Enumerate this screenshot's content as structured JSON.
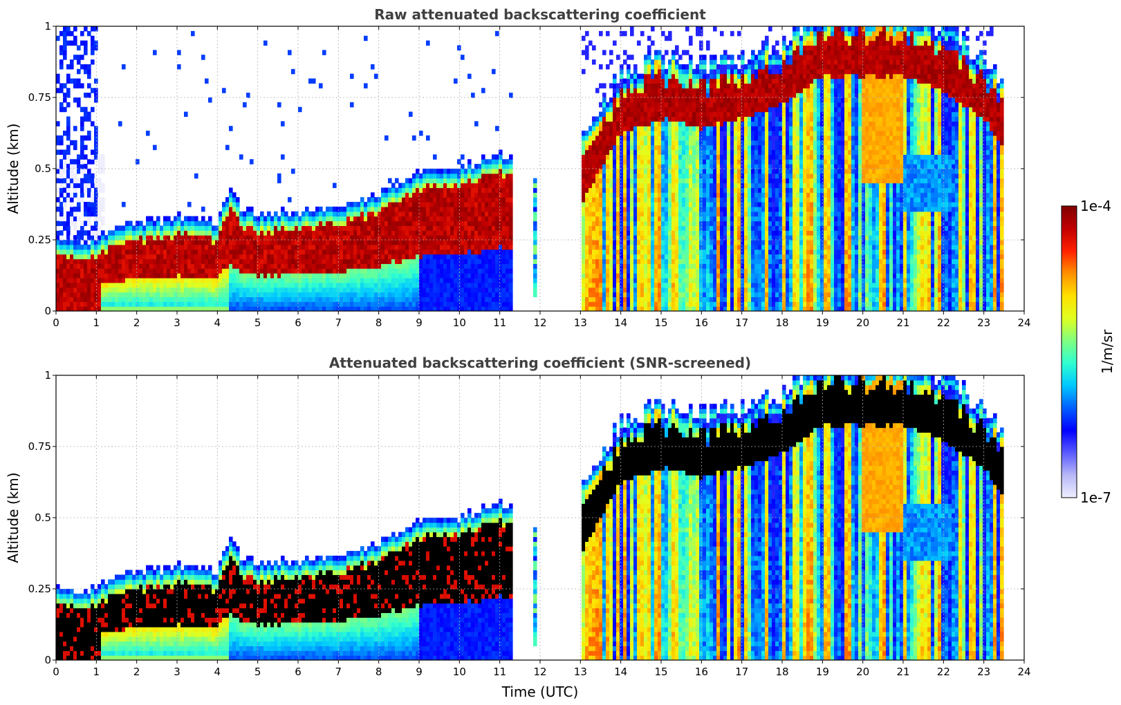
{
  "chart_data": [
    {
      "type": "heatmap",
      "title": "Raw attenuated backscattering coefficient",
      "xlabel": "",
      "ylabel": "Altitude (km)",
      "xlim": [
        0,
        24
      ],
      "ylim": [
        0,
        1
      ],
      "xticks": [
        "0",
        "1",
        "2",
        "3",
        "4",
        "5",
        "6",
        "7",
        "8",
        "9",
        "10",
        "11",
        "12",
        "13",
        "14",
        "15",
        "16",
        "17",
        "18",
        "19",
        "20",
        "21",
        "22",
        "23",
        "24"
      ],
      "yticks": [
        "0",
        "0.25",
        "0.5",
        "0.75",
        "1"
      ],
      "grid": true,
      "screened": false,
      "data_gaps_utc": [
        [
          11.35,
          11.8
        ],
        [
          11.9,
          13.0
        ]
      ],
      "boundary_layer_top_km": {
        "x": [
          0,
          1,
          1.2,
          2,
          3,
          4,
          4.3,
          4.6,
          5,
          6,
          7,
          8,
          9,
          10,
          11,
          11.35
        ],
        "y": [
          0.19,
          0.19,
          0.22,
          0.25,
          0.27,
          0.25,
          0.37,
          0.3,
          0.28,
          0.29,
          0.31,
          0.35,
          0.43,
          0.44,
          0.5,
          0.46
        ]
      },
      "afternoon_cloud_layer_km": {
        "x": [
          13,
          14,
          15,
          16,
          17,
          18,
          19,
          20,
          21,
          22,
          23,
          23.5
        ],
        "y": [
          0.55,
          0.8,
          0.85,
          0.82,
          0.85,
          0.9,
          1.0,
          1.0,
          1.0,
          0.95,
          0.85,
          0.75
        ]
      }
    },
    {
      "type": "heatmap",
      "title": "Attenuated backscattering coefficient (SNR-screened)",
      "xlabel": "Time (UTC)",
      "ylabel": "Altitude (km)",
      "xlim": [
        0,
        24
      ],
      "ylim": [
        0,
        1
      ],
      "xticks": [
        "0",
        "1",
        "2",
        "3",
        "4",
        "5",
        "6",
        "7",
        "8",
        "9",
        "10",
        "11",
        "12",
        "13",
        "14",
        "15",
        "16",
        "17",
        "18",
        "19",
        "20",
        "21",
        "22",
        "23",
        "24"
      ],
      "yticks": [
        "0",
        "0.25",
        "0.5",
        "0.75",
        "1"
      ],
      "grid": true,
      "screened": true,
      "data_gaps_utc": [
        [
          11.35,
          11.8
        ],
        [
          11.9,
          13.0
        ]
      ]
    }
  ],
  "colorbar": {
    "label": "1/m/sr",
    "min_label": "1e-7",
    "max_label": "1e-4",
    "scale": "log",
    "colormap": [
      "#eeeeff",
      "#b8b8f8",
      "#5a5aff",
      "#0000ff",
      "#0060ff",
      "#00c8ff",
      "#30ffd0",
      "#80ff80",
      "#e0ff20",
      "#ffe000",
      "#ff9000",
      "#ff2000",
      "#c00000",
      "#800000"
    ]
  }
}
